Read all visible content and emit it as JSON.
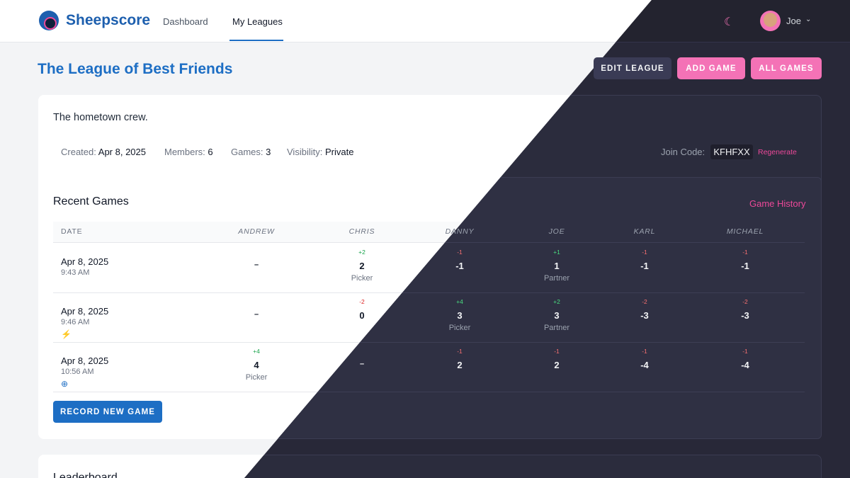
{
  "app": {
    "name": "Sheepscore"
  },
  "nav": {
    "dashboard": "Dashboard",
    "my_leagues": "My Leagues"
  },
  "user": {
    "name": "Joe",
    "theme_icon": "moon-icon"
  },
  "league": {
    "title": "The League of Best Friends",
    "description": "The hometown crew.",
    "created_label": "Created:",
    "created": "Apr 8, 2025",
    "members_label": "Members:",
    "members": "6",
    "games_label": "Games:",
    "games": "3",
    "visibility_label": "Visibility:",
    "visibility": "Private",
    "join_label": "Join Code:",
    "join_code": "KFHFXX",
    "regenerate": "Regenerate"
  },
  "actions": {
    "edit": "Edit League",
    "add": "Add Game",
    "all": "All Games",
    "record": "Record New Game"
  },
  "recent": {
    "title": "Recent Games",
    "history_link": "Game History",
    "headers": [
      "Date",
      "Andrew",
      "Chris",
      "Danny",
      "Joe",
      "Karl",
      "Michael"
    ],
    "rows": [
      {
        "date": "Apr 8, 2025",
        "time": "9:43 AM",
        "icon": "",
        "cells": [
          {
            "delta": "",
            "score": "–",
            "role": "",
            "sign": ""
          },
          {
            "delta": "+2",
            "score": "2",
            "role": "Picker",
            "sign": "pos"
          },
          {
            "delta": "-1",
            "score": "-1",
            "role": "",
            "sign": "neg"
          },
          {
            "delta": "+1",
            "score": "1",
            "role": "Partner",
            "sign": "pos"
          },
          {
            "delta": "-1",
            "score": "-1",
            "role": "",
            "sign": "neg"
          },
          {
            "delta": "-1",
            "score": "-1",
            "role": "",
            "sign": "neg"
          }
        ]
      },
      {
        "date": "Apr 8, 2025",
        "time": "9:46 AM",
        "icon": "⚡",
        "cells": [
          {
            "delta": "",
            "score": "–",
            "role": "",
            "sign": ""
          },
          {
            "delta": "-2",
            "score": "0",
            "role": "",
            "sign": "neg"
          },
          {
            "delta": "+4",
            "score": "3",
            "role": "Picker",
            "sign": "pos"
          },
          {
            "delta": "+2",
            "score": "3",
            "role": "Partner",
            "sign": "pos"
          },
          {
            "delta": "-2",
            "score": "-3",
            "role": "",
            "sign": "neg"
          },
          {
            "delta": "-2",
            "score": "-3",
            "role": "",
            "sign": "neg"
          }
        ]
      },
      {
        "date": "Apr 8, 2025",
        "time": "10:56 AM",
        "icon": "⊕",
        "cells": [
          {
            "delta": "+4",
            "score": "4",
            "role": "Picker",
            "sign": "pos"
          },
          {
            "delta": "",
            "score": "–",
            "role": "",
            "sign": ""
          },
          {
            "delta": "-1",
            "score": "2",
            "role": "",
            "sign": "neg"
          },
          {
            "delta": "-1",
            "score": "2",
            "role": "",
            "sign": "neg"
          },
          {
            "delta": "-1",
            "score": "-4",
            "role": "",
            "sign": "neg"
          },
          {
            "delta": "-1",
            "score": "-4",
            "role": "",
            "sign": "neg"
          }
        ]
      }
    ]
  },
  "leaderboard": {
    "title": "Leaderboard"
  }
}
